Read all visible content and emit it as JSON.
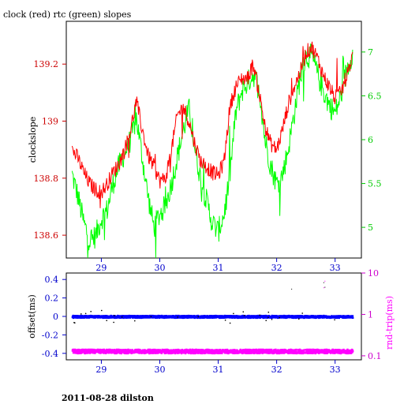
{
  "title": "clock (red) rtc (green) slopes",
  "footer": "2011-08-28 dilston",
  "colors": {
    "red": "#ff0000",
    "green": "#00ff00",
    "blue": "#0000ff",
    "magenta": "#ff00ff",
    "black": "#000000",
    "red_axis": "#cc0000",
    "green_axis": "#00cc00",
    "blue_axis": "#0000cc",
    "magenta_axis": "#cc00cc"
  },
  "chart_data": [
    {
      "type": "line",
      "ylabel": "clockslope",
      "xlim": [
        28.4,
        33.45
      ],
      "x_ticks": [
        29,
        30,
        31,
        32,
        33
      ],
      "x_tick_labels": [
        "29",
        "30",
        "31",
        "32",
        "33"
      ],
      "ylim_left": [
        138.52,
        139.35
      ],
      "y_left_ticks": [
        138.6,
        138.8,
        139,
        139.2
      ],
      "y_left_tick_labels": [
        "138.6",
        "138.8",
        "139",
        "139.2"
      ],
      "ylim_right": [
        4.65,
        7.35
      ],
      "y_right_ticks": [
        5,
        5.5,
        6,
        6.5,
        7
      ],
      "y_right_tick_labels": [
        "5",
        "5.5",
        "6",
        "6.5",
        "7"
      ],
      "series": [
        {
          "name": "clock",
          "axis": "left",
          "x": [
            28.5,
            28.6,
            28.7,
            28.8,
            28.9,
            29.0,
            29.1,
            29.2,
            29.3,
            29.4,
            29.5,
            29.6,
            29.7,
            29.8,
            29.9,
            30.0,
            30.1,
            30.2,
            30.3,
            30.4,
            30.5,
            30.6,
            30.7,
            30.8,
            30.9,
            31.0,
            31.1,
            31.2,
            31.3,
            31.4,
            31.5,
            31.6,
            31.7,
            31.8,
            31.9,
            32.0,
            32.1,
            32.2,
            32.3,
            32.4,
            32.5,
            32.6,
            32.7,
            32.8,
            32.9,
            33.0,
            33.1,
            33.2,
            33.3
          ],
          "y": [
            138.9,
            138.87,
            138.82,
            138.78,
            138.76,
            138.75,
            138.78,
            138.82,
            138.85,
            138.9,
            138.97,
            139.07,
            138.97,
            138.88,
            138.84,
            138.79,
            138.8,
            138.9,
            139.02,
            139.05,
            139.0,
            138.92,
            138.86,
            138.84,
            138.82,
            138.81,
            138.86,
            139.05,
            139.12,
            139.15,
            139.15,
            139.2,
            139.1,
            138.98,
            138.92,
            138.9,
            138.97,
            139.06,
            139.12,
            139.17,
            139.24,
            139.26,
            139.22,
            139.16,
            139.12,
            139.08,
            139.1,
            139.16,
            139.23
          ]
        },
        {
          "name": "rtc",
          "axis": "right",
          "x": [
            28.5,
            28.6,
            28.7,
            28.8,
            28.9,
            29.0,
            29.1,
            29.2,
            29.3,
            29.4,
            29.5,
            29.6,
            29.7,
            29.8,
            29.9,
            30.0,
            30.1,
            30.2,
            30.3,
            30.4,
            30.5,
            30.6,
            30.7,
            30.8,
            30.9,
            31.0,
            31.1,
            31.2,
            31.3,
            31.4,
            31.5,
            31.6,
            31.7,
            31.8,
            31.9,
            32.0,
            32.1,
            32.2,
            32.3,
            32.4,
            32.5,
            32.6,
            32.7,
            32.8,
            32.9,
            33.0,
            33.1,
            33.2,
            33.3
          ],
          "y": [
            5.6,
            5.35,
            5.05,
            4.85,
            4.9,
            5.1,
            5.2,
            5.5,
            5.7,
            5.85,
            6.0,
            6.25,
            5.8,
            5.35,
            5.0,
            5.15,
            5.25,
            5.5,
            5.8,
            6.1,
            6.35,
            5.9,
            5.55,
            5.3,
            5.05,
            4.95,
            5.15,
            5.6,
            6.3,
            6.55,
            6.65,
            6.75,
            6.6,
            6.0,
            5.7,
            5.5,
            5.6,
            5.9,
            6.3,
            6.7,
            6.95,
            6.95,
            6.75,
            6.55,
            6.4,
            6.3,
            6.5,
            6.8,
            7.0
          ]
        }
      ]
    },
    {
      "type": "scatter",
      "ylabel": "offset(ms)",
      "ylabel_right": "rnd-trip(ms)",
      "xlim": [
        28.4,
        33.45
      ],
      "x_ticks": [
        29,
        30,
        31,
        32,
        33
      ],
      "x_tick_labels": [
        "29",
        "30",
        "31",
        "32",
        "33"
      ],
      "ylim_left": [
        -0.47,
        0.47
      ],
      "y_left_ticks": [
        -0.4,
        -0.2,
        0,
        0.2,
        0.4
      ],
      "y_left_tick_labels": [
        "-0.4",
        "-0.2",
        "0",
        "0.2",
        "0.4"
      ],
      "ylim_right_log": [
        0.08,
        10
      ],
      "y_right_ticks": [
        0.1,
        1,
        10
      ],
      "y_right_tick_labels": [
        "0.1",
        "1",
        "10"
      ],
      "y_right_scale": "log",
      "series": [
        {
          "name": "offset",
          "axis": "left",
          "x_range": [
            28.5,
            33.3
          ],
          "typical_value": 0.0,
          "spread": 0.012
        },
        {
          "name": "rnd-trip",
          "axis": "right",
          "x_range": [
            28.5,
            33.3
          ],
          "typical_value": 0.13,
          "spread": 0.01
        }
      ]
    }
  ]
}
